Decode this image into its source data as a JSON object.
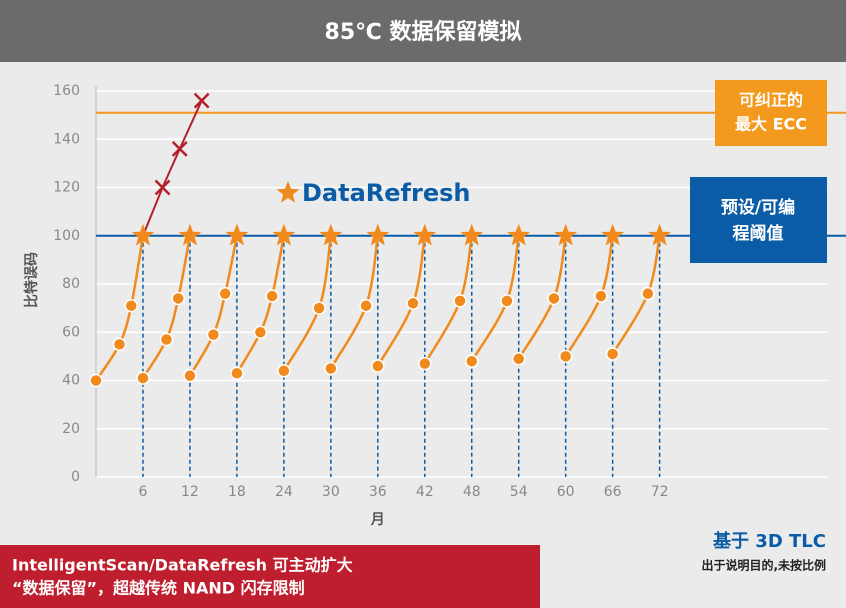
{
  "chart_data": {
    "type": "line",
    "title": "85℃ 数据保留模拟",
    "xlabel": "月",
    "ylabel": "比特误码",
    "xlim": [
      0,
      93
    ],
    "ylim": [
      0,
      160
    ],
    "xticks": [
      6,
      12,
      18,
      24,
      30,
      36,
      42,
      48,
      54,
      60,
      66,
      72
    ],
    "yticks": [
      0,
      20,
      40,
      60,
      80,
      100,
      120,
      140,
      160
    ],
    "grid": true,
    "series": [
      {
        "color": "#f08a1c",
        "x": [
          0,
          3,
          4.5,
          6,
          null,
          6,
          9,
          10.5,
          12,
          null,
          12,
          15,
          16.5,
          18,
          null,
          18,
          21,
          22.5,
          24,
          null,
          24,
          28.5,
          30,
          null,
          30,
          34.5,
          36,
          null,
          36,
          40.5,
          42,
          null,
          42,
          46.5,
          48,
          null,
          48,
          52.5,
          54,
          null,
          54,
          58.5,
          60,
          null,
          60,
          64.5,
          66,
          null,
          66,
          70.5,
          72
        ],
        "values": [
          40,
          55,
          71,
          100,
          null,
          41,
          57,
          74,
          100,
          null,
          42,
          59,
          76,
          100,
          null,
          43,
          60,
          75,
          100,
          null,
          44,
          70,
          100,
          null,
          45,
          71,
          100,
          null,
          46,
          72,
          100,
          null,
          47,
          73,
          100,
          null,
          48,
          73,
          100,
          null,
          49,
          74,
          100,
          null,
          50,
          75,
          100,
          null,
          51,
          76,
          100
        ]
      },
      {
        "color": "#b3202a",
        "x": [
          6,
          8.5,
          10.7,
          13.5
        ],
        "values": [
          100,
          120,
          136,
          156
        ]
      }
    ],
    "ecc_limit": 151,
    "ecc_color": "#f39a1e",
    "threshold": 100,
    "threshold_color": "#0b5ca6",
    "ecc_label": [
      "可纠正的",
      "最大 ECC"
    ],
    "threshold_label": [
      "预设/可编",
      "程阈值"
    ],
    "legend_label": "DataRefresh",
    "note": "基于 3D TLC",
    "note_sub": "出于说明目的,未按比例",
    "banner": [
      "IntelligentScan/DataRefresh 可主动扩大",
      "“数据保留”，超越传统 NAND 闪存限制"
    ]
  }
}
